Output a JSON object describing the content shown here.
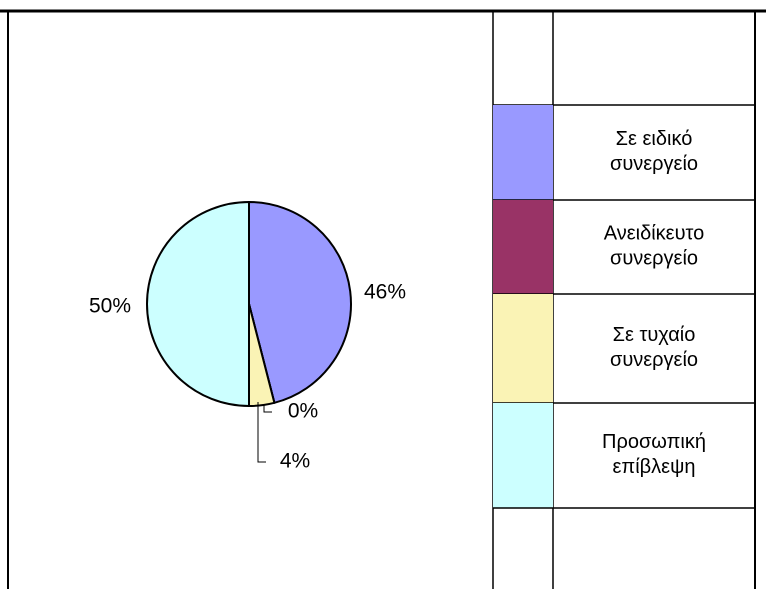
{
  "chart_data": {
    "type": "pie",
    "categories": [
      "Σε ειδικό συνεργείο",
      "Ανειδίκευτο συνεργείο",
      "Σε τυχαίο συνεργείο",
      "Προσωπική επίβλεψη"
    ],
    "values": [
      46,
      0,
      4,
      50
    ],
    "value_labels": [
      "46%",
      "0%",
      "4%",
      "50%"
    ],
    "colors": [
      "#9999ff",
      "#993366",
      "#faf3b5",
      "#ccffff"
    ]
  }
}
